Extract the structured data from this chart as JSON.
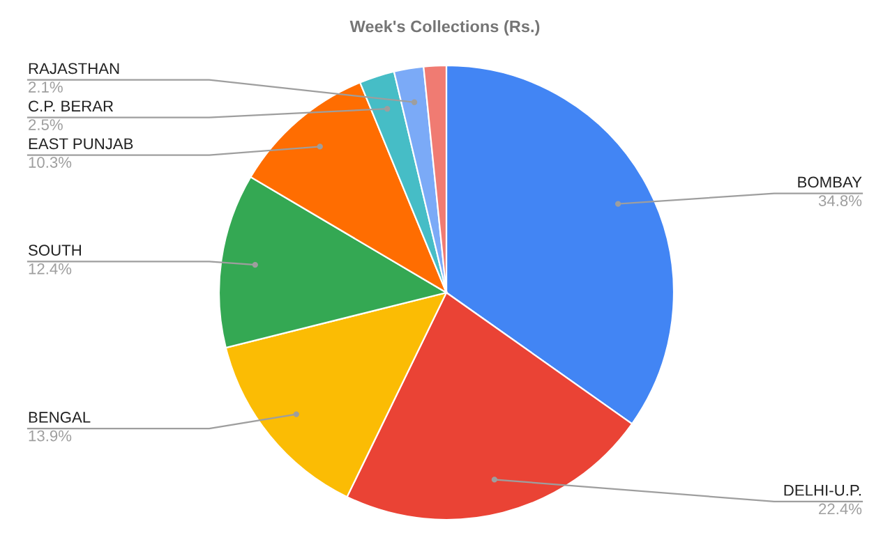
{
  "chart_data": {
    "type": "pie",
    "title": "Week's Collections (Rs.)",
    "categories": [
      "BOMBAY",
      "DELHI-U.P.",
      "BENGAL",
      "SOUTH",
      "EAST PUNJAB",
      "C.P. BERAR",
      "RAJASTHAN",
      null
    ],
    "values": [
      34.8,
      22.4,
      13.9,
      12.4,
      10.3,
      2.5,
      2.1,
      1.6
    ],
    "colors": [
      "#4285f4",
      "#ea4335",
      "#fbbc04",
      "#34a853",
      "#ff6d01",
      "#46bdc6",
      "#7baaf7",
      "#f07b72"
    ],
    "value_labels": [
      "34.8%",
      "22.4%",
      "13.9%",
      "12.4%",
      "10.3%",
      "2.5%",
      "2.1%",
      null
    ]
  }
}
